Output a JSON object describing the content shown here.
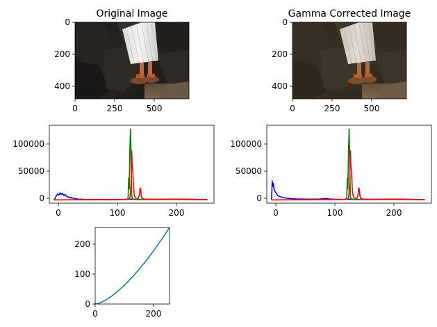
{
  "chart_data": [
    {
      "type": "image",
      "title": "Original Image",
      "x_ticks": [
        "0",
        "250",
        "500"
      ],
      "y_ticks": [
        "0",
        "200",
        "400"
      ],
      "xlim": [
        0,
        720
      ],
      "ylim": [
        480,
        0
      ],
      "image_content": "photo of a person in a white pleated skirt and brown sandals standing on dark rocks"
    },
    {
      "type": "image",
      "title": "Gamma Corrected Image",
      "x_ticks": [
        "0",
        "250",
        "500"
      ],
      "y_ticks": [
        "0",
        "200",
        "400"
      ],
      "xlim": [
        0,
        720
      ],
      "ylim": [
        480,
        0
      ],
      "image_content": "same photo with gamma correction applied, slightly lighter and browner"
    },
    {
      "type": "line",
      "title": "",
      "xlim": [
        -8,
        266
      ],
      "ylim": [
        -6000,
        137000
      ],
      "x_ticks": [
        "0",
        "100",
        "200"
      ],
      "y_ticks": [
        "0",
        "50000",
        "100000"
      ],
      "series": [
        {
          "color": "#0000ff",
          "points": [
            [
              0,
              0
            ],
            [
              2,
              4000
            ],
            [
              4,
              8000
            ],
            [
              6,
              11000
            ],
            [
              8,
              9000
            ],
            [
              10,
              13000
            ],
            [
              12,
              10000
            ],
            [
              14,
              12000
            ],
            [
              16,
              8000
            ],
            [
              18,
              10000
            ],
            [
              20,
              7000
            ],
            [
              22,
              6000
            ],
            [
              24,
              5000
            ],
            [
              26,
              3500
            ],
            [
              28,
              4500
            ],
            [
              30,
              3000
            ],
            [
              32,
              3500
            ],
            [
              34,
              2500
            ],
            [
              36,
              2000
            ],
            [
              40,
              1500
            ],
            [
              50,
              1000
            ],
            [
              60,
              800
            ],
            [
              80,
              600
            ],
            [
              100,
              500
            ],
            [
              120,
              800
            ],
            [
              125,
              1200
            ],
            [
              130,
              1000
            ],
            [
              140,
              600
            ],
            [
              160,
              800
            ],
            [
              180,
              1000
            ],
            [
              200,
              1200
            ],
            [
              220,
              1000
            ],
            [
              240,
              600
            ],
            [
              255,
              300
            ]
          ]
        },
        {
          "color": "#008000",
          "points": [
            [
              0,
              0
            ],
            [
              60,
              300
            ],
            [
              100,
              500
            ],
            [
              118,
              800
            ],
            [
              123,
              2000
            ],
            [
              124,
              40000
            ],
            [
              125,
              20000
            ],
            [
              126,
              90000
            ],
            [
              127,
              130000
            ],
            [
              128,
              80000
            ],
            [
              129,
              10000
            ],
            [
              130,
              2000
            ],
            [
              135,
              800
            ],
            [
              160,
              600
            ],
            [
              200,
              800
            ],
            [
              230,
              600
            ],
            [
              255,
              300
            ]
          ]
        },
        {
          "color": "#ff0000",
          "points": [
            [
              0,
              0
            ],
            [
              60,
              300
            ],
            [
              100,
              500
            ],
            [
              120,
              700
            ],
            [
              126,
              2000
            ],
            [
              128,
              30000
            ],
            [
              129,
              90000
            ],
            [
              130,
              60000
            ],
            [
              131,
              52000
            ],
            [
              132,
              25000
            ],
            [
              133,
              12000
            ],
            [
              134,
              6000
            ],
            [
              136,
              3000
            ],
            [
              140,
              2500
            ],
            [
              142,
              10000
            ],
            [
              143,
              22000
            ],
            [
              144,
              20000
            ],
            [
              145,
              8000
            ],
            [
              146,
              3000
            ],
            [
              150,
              1500
            ],
            [
              170,
              1000
            ],
            [
              200,
              1500
            ],
            [
              220,
              1200
            ],
            [
              240,
              800
            ],
            [
              255,
              400
            ]
          ]
        }
      ]
    },
    {
      "type": "line",
      "title": "",
      "xlim": [
        -8,
        266
      ],
      "ylim": [
        -6000,
        137000
      ],
      "x_ticks": [
        "0",
        "100",
        "200"
      ],
      "y_ticks": [
        "0",
        "50000",
        "100000"
      ],
      "series": [
        {
          "color": "#0000ff",
          "points": [
            [
              0,
              0
            ],
            [
              1,
              35000
            ],
            [
              2,
              25000
            ],
            [
              3,
              30000
            ],
            [
              4,
              20000
            ],
            [
              6,
              15000
            ],
            [
              8,
              12000
            ],
            [
              10,
              8000
            ],
            [
              14,
              6000
            ],
            [
              20,
              4000
            ],
            [
              30,
              2500
            ],
            [
              40,
              1800
            ],
            [
              60,
              1200
            ],
            [
              80,
              1500
            ],
            [
              90,
              2500
            ],
            [
              100,
              1200
            ],
            [
              120,
              800
            ],
            [
              125,
              1200
            ],
            [
              130,
              1000
            ],
            [
              140,
              600
            ],
            [
              160,
              800
            ],
            [
              180,
              1000
            ],
            [
              200,
              1200
            ],
            [
              220,
              1000
            ],
            [
              240,
              600
            ],
            [
              255,
              300
            ]
          ]
        },
        {
          "color": "#008000",
          "points": [
            [
              0,
              0
            ],
            [
              60,
              300
            ],
            [
              100,
              500
            ],
            [
              118,
              800
            ],
            [
              125,
              2000
            ],
            [
              126,
              40000
            ],
            [
              127,
              20000
            ],
            [
              128,
              90000
            ],
            [
              129,
              130000
            ],
            [
              130,
              80000
            ],
            [
              131,
              10000
            ],
            [
              132,
              2000
            ],
            [
              137,
              800
            ],
            [
              160,
              600
            ],
            [
              200,
              800
            ],
            [
              230,
              600
            ],
            [
              255,
              300
            ]
          ]
        },
        {
          "color": "#ff0000",
          "points": [
            [
              0,
              0
            ],
            [
              60,
              300
            ],
            [
              100,
              500
            ],
            [
              120,
              700
            ],
            [
              128,
              2000
            ],
            [
              130,
              30000
            ],
            [
              131,
              90000
            ],
            [
              132,
              60000
            ],
            [
              133,
              52000
            ],
            [
              134,
              25000
            ],
            [
              135,
              12000
            ],
            [
              136,
              6000
            ],
            [
              138,
              3000
            ],
            [
              142,
              2500
            ],
            [
              144,
              10000
            ],
            [
              145,
              22000
            ],
            [
              146,
              20000
            ],
            [
              147,
              8000
            ],
            [
              148,
              3000
            ],
            [
              152,
              1500
            ],
            [
              170,
              1000
            ],
            [
              200,
              1500
            ],
            [
              220,
              1200
            ],
            [
              240,
              800
            ],
            [
              255,
              400
            ]
          ]
        }
      ]
    },
    {
      "type": "line",
      "title": "",
      "xlim": [
        0,
        255
      ],
      "ylim": [
        0,
        255
      ],
      "x_ticks": [
        "0",
        "200"
      ],
      "y_ticks": [
        "0",
        "100",
        "200"
      ],
      "series": [
        {
          "color": "#1f77b4",
          "function": "gamma",
          "gamma": 1.5,
          "max": 255
        }
      ]
    }
  ]
}
